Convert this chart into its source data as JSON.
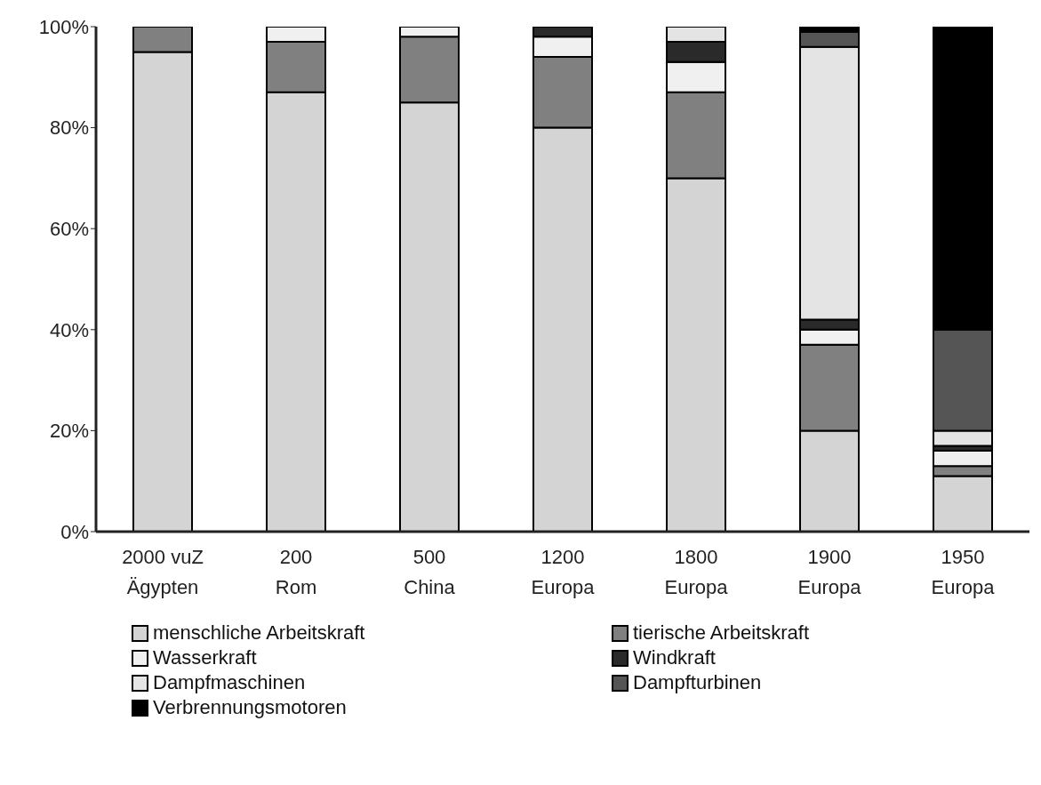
{
  "chart_data": {
    "type": "bar",
    "stacked": true,
    "categories": [
      "2000 vuZ\nÄgypten",
      "200\nRom",
      "500\nChina",
      "1200\nEuropa",
      "1800\nEuropa",
      "1900\nEuropa",
      "1950\nEuropa"
    ],
    "series": [
      {
        "name": "menschliche Arbeitskraft",
        "color": "#d4d4d4",
        "values": [
          95,
          87,
          85,
          80,
          70,
          20,
          11
        ]
      },
      {
        "name": "tierische Arbeitskraft",
        "color": "#808080",
        "values": [
          5,
          10,
          13,
          14,
          17,
          17,
          2
        ]
      },
      {
        "name": "Wasserkraft",
        "color": "#f0f0f0",
        "values": [
          0,
          3,
          2,
          4,
          6,
          3,
          3
        ]
      },
      {
        "name": "Windkraft",
        "color": "#2a2a2a",
        "values": [
          0,
          0,
          0,
          2,
          4,
          2,
          1
        ]
      },
      {
        "name": "Dampfmaschinen",
        "color": "#e4e4e4",
        "values": [
          0,
          0,
          0,
          0,
          3,
          54,
          3
        ]
      },
      {
        "name": "Dampfturbinen",
        "color": "#555555",
        "values": [
          0,
          0,
          0,
          0,
          0,
          3,
          20
        ]
      },
      {
        "name": "Verbrennungsmotoren",
        "color": "#000000",
        "values": [
          0,
          0,
          0,
          0,
          0,
          1,
          60
        ]
      }
    ],
    "ylim": [
      0,
      100
    ],
    "yticks": [
      {
        "value": 0,
        "label": "0%"
      },
      {
        "value": 20,
        "label": "20%"
      },
      {
        "value": 40,
        "label": "40%"
      },
      {
        "value": 60,
        "label": "60%"
      },
      {
        "value": 80,
        "label": "80%"
      },
      {
        "value": 100,
        "label": "100%"
      }
    ],
    "grid": false,
    "legend": "bottom"
  }
}
